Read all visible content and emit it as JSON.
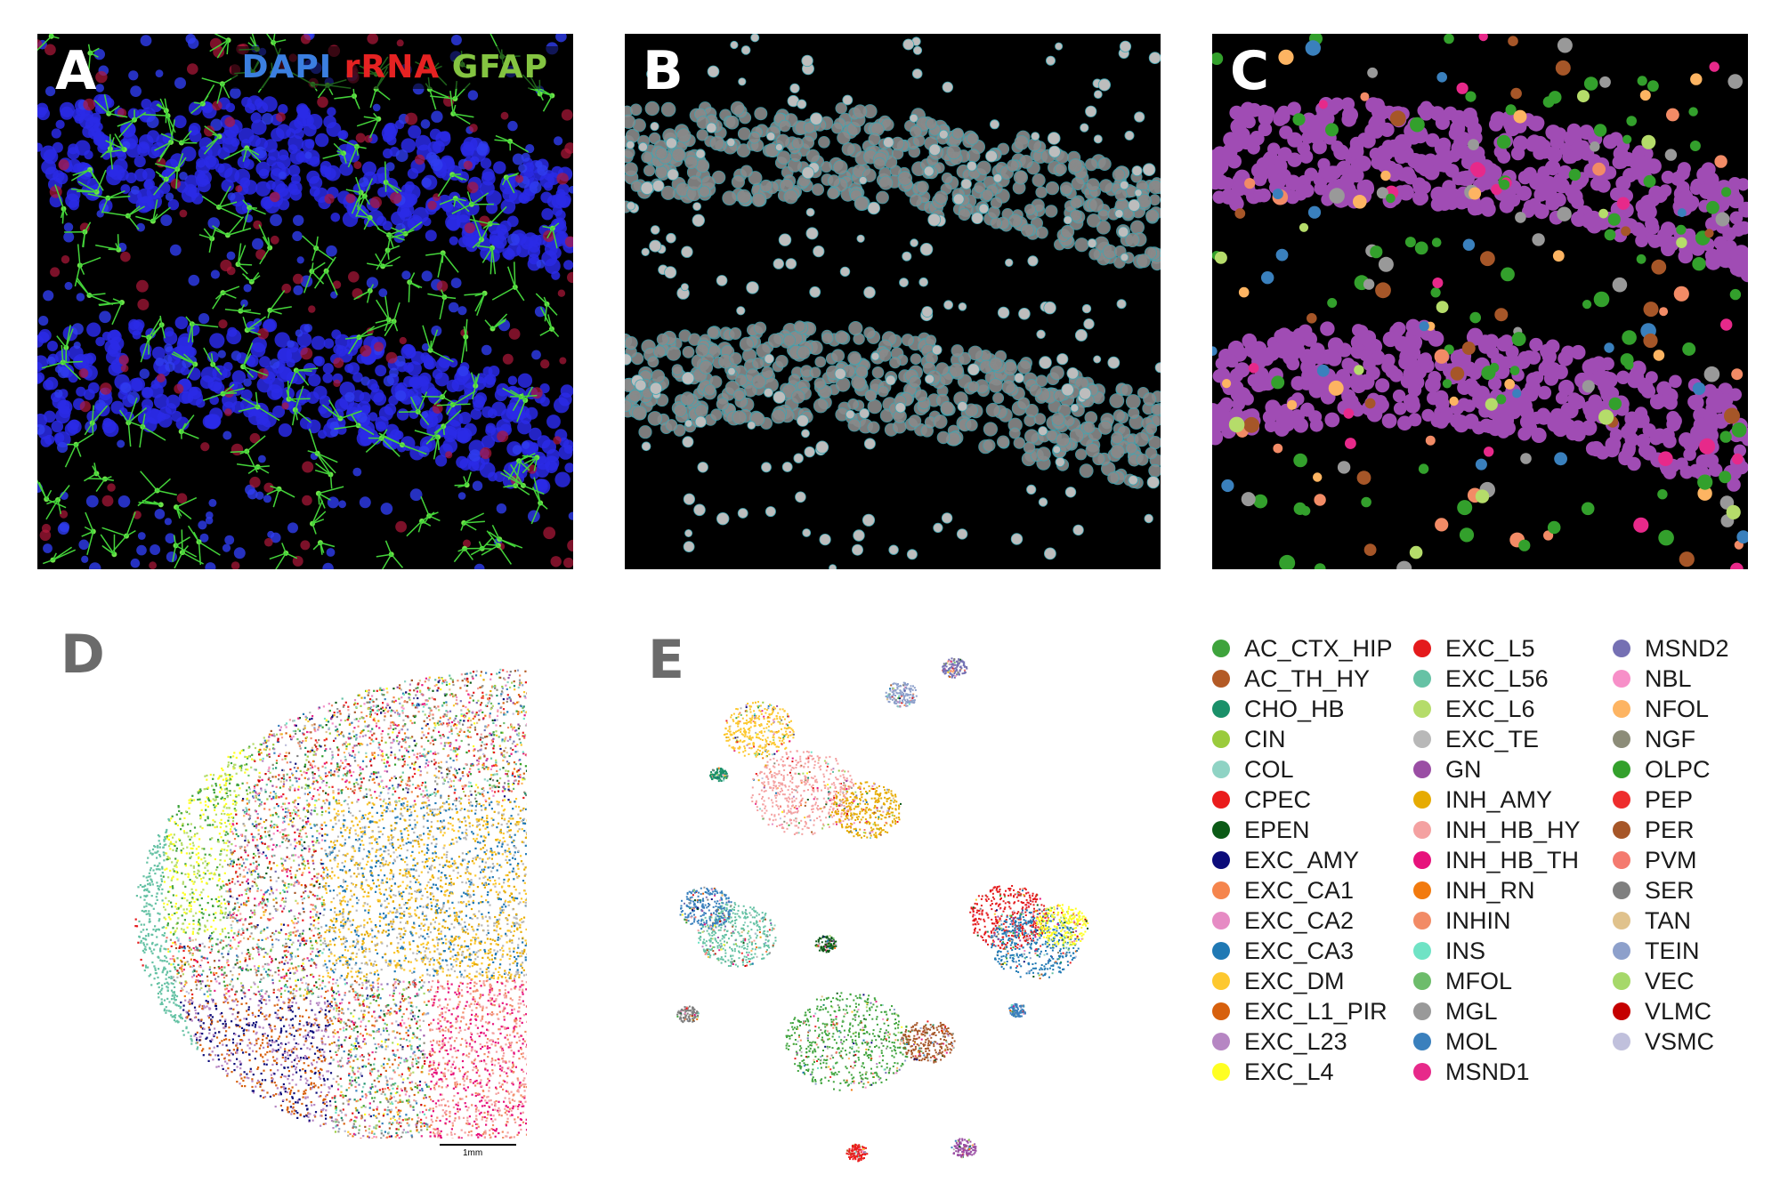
{
  "panels": {
    "a": {
      "letter": "A"
    },
    "b": {
      "letter": "B"
    },
    "c": {
      "letter": "C"
    },
    "d": {
      "letter": "D"
    },
    "e": {
      "letter": "E"
    }
  },
  "channel_legend": {
    "dapi": {
      "text": "DAPI",
      "color": "#3b7fe0"
    },
    "rrna": {
      "text": "rRNA",
      "color": "#e52222"
    },
    "gfap": {
      "text": "GFAP",
      "color": "#84c441"
    }
  },
  "scale_bar": {
    "label": "1mm"
  },
  "cell_types": [
    {
      "label": "AC_CTX_HIP",
      "color": "#3ea33c"
    },
    {
      "label": "AC_TH_HY",
      "color": "#b35a25"
    },
    {
      "label": "CHO_HB",
      "color": "#1a9069"
    },
    {
      "label": "CIN",
      "color": "#9acb3c"
    },
    {
      "label": "COL",
      "color": "#8fd3c4"
    },
    {
      "label": "CPEC",
      "color": "#ea1c1c"
    },
    {
      "label": "EPEN",
      "color": "#0b5a16"
    },
    {
      "label": "EXC_AMY",
      "color": "#0c0c7a"
    },
    {
      "label": "EXC_CA1",
      "color": "#f5854d"
    },
    {
      "label": "EXC_CA2",
      "color": "#e68bc4"
    },
    {
      "label": "EXC_CA3",
      "color": "#2079b4"
    },
    {
      "label": "EXC_DM",
      "color": "#fdc82f"
    },
    {
      "label": "EXC_L1_PIR",
      "color": "#d7600d"
    },
    {
      "label": "EXC_L23",
      "color": "#b686c3"
    },
    {
      "label": "EXC_L4",
      "color": "#ffff22"
    },
    {
      "label": "EXC_L5",
      "color": "#e41a1c"
    },
    {
      "label": "EXC_L56",
      "color": "#66c2a5"
    },
    {
      "label": "EXC_L6",
      "color": "#b5dc6a"
    },
    {
      "label": "EXC_TE",
      "color": "#b8b8b8"
    },
    {
      "label": "GN",
      "color": "#9a4ea4"
    },
    {
      "label": "INH_AMY",
      "color": "#e6ab02"
    },
    {
      "label": "INH_HB_HY",
      "color": "#f4a1a1"
    },
    {
      "label": "INH_HB_TH",
      "color": "#e7127c"
    },
    {
      "label": "INH_RN",
      "color": "#f27a0e"
    },
    {
      "label": "INHIN",
      "color": "#f28b66"
    },
    {
      "label": "INS",
      "color": "#6fe3c5"
    },
    {
      "label": "MFOL",
      "color": "#6dbc6b"
    },
    {
      "label": "MGL",
      "color": "#999999"
    },
    {
      "label": "MOL",
      "color": "#3a80bd"
    },
    {
      "label": "MSND1",
      "color": "#e7298a"
    },
    {
      "label": "MSND2",
      "color": "#7570b3"
    },
    {
      "label": "NBL",
      "color": "#f78fc8"
    },
    {
      "label": "NFOL",
      "color": "#fdb462"
    },
    {
      "label": "NGF",
      "color": "#8c8c78"
    },
    {
      "label": "OLPC",
      "color": "#33a02c"
    },
    {
      "label": "PEP",
      "color": "#ee2d2d"
    },
    {
      "label": "PER",
      "color": "#a65628"
    },
    {
      "label": "PVM",
      "color": "#f47a6f"
    },
    {
      "label": "SER",
      "color": "#7f7f7f"
    },
    {
      "label": "TAN",
      "color": "#e0c28c"
    },
    {
      "label": "TEIN",
      "color": "#8da0cb"
    },
    {
      "label": "VEC",
      "color": "#a6d86a"
    },
    {
      "label": "VLMC",
      "color": "#c50000"
    },
    {
      "label": "VSMC",
      "color": "#c0c0dc"
    }
  ]
}
